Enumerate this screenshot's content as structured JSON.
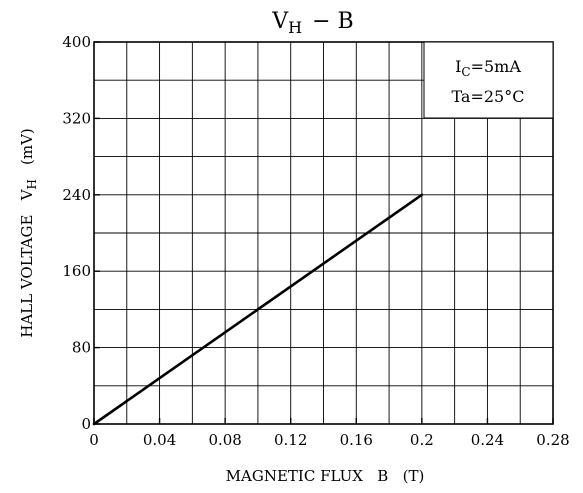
{
  "chart_data": {
    "type": "line",
    "title": {
      "main": "V",
      "sub": "H",
      "rest": "−  B"
    },
    "xlabel": "MAGNETIC FLUX   B   (T)",
    "ylabel": {
      "main": "HALL VOLTAGE   V",
      "sub": "H",
      "unit": "(mV)"
    },
    "xlim": [
      0,
      0.28
    ],
    "ylim": [
      0,
      400
    ],
    "xticks": [
      0,
      0.04,
      0.08,
      0.12,
      0.16,
      0.2,
      0.24,
      0.28
    ],
    "xtick_labels": [
      "0",
      "0.04",
      "0.08",
      "0.12",
      "0.16",
      "0.2",
      "0.24",
      "0.28"
    ],
    "yticks": [
      0,
      80,
      160,
      240,
      320,
      400
    ],
    "ytick_labels": [
      "0",
      "80",
      "160",
      "240",
      "320",
      "400"
    ],
    "x_grid_step": 0.02,
    "y_grid_step": 40,
    "grid": true,
    "series": [
      {
        "x": [
          0,
          0.2
        ],
        "y": [
          0,
          240
        ]
      }
    ],
    "annotations": {
      "condition_1": {
        "main": "I",
        "sub": "C",
        "rest": "=5mA"
      },
      "condition_2": "Ta=25°C"
    }
  },
  "colors": {
    "line": "#000000",
    "grid": "#000000",
    "background": "#ffffff"
  }
}
